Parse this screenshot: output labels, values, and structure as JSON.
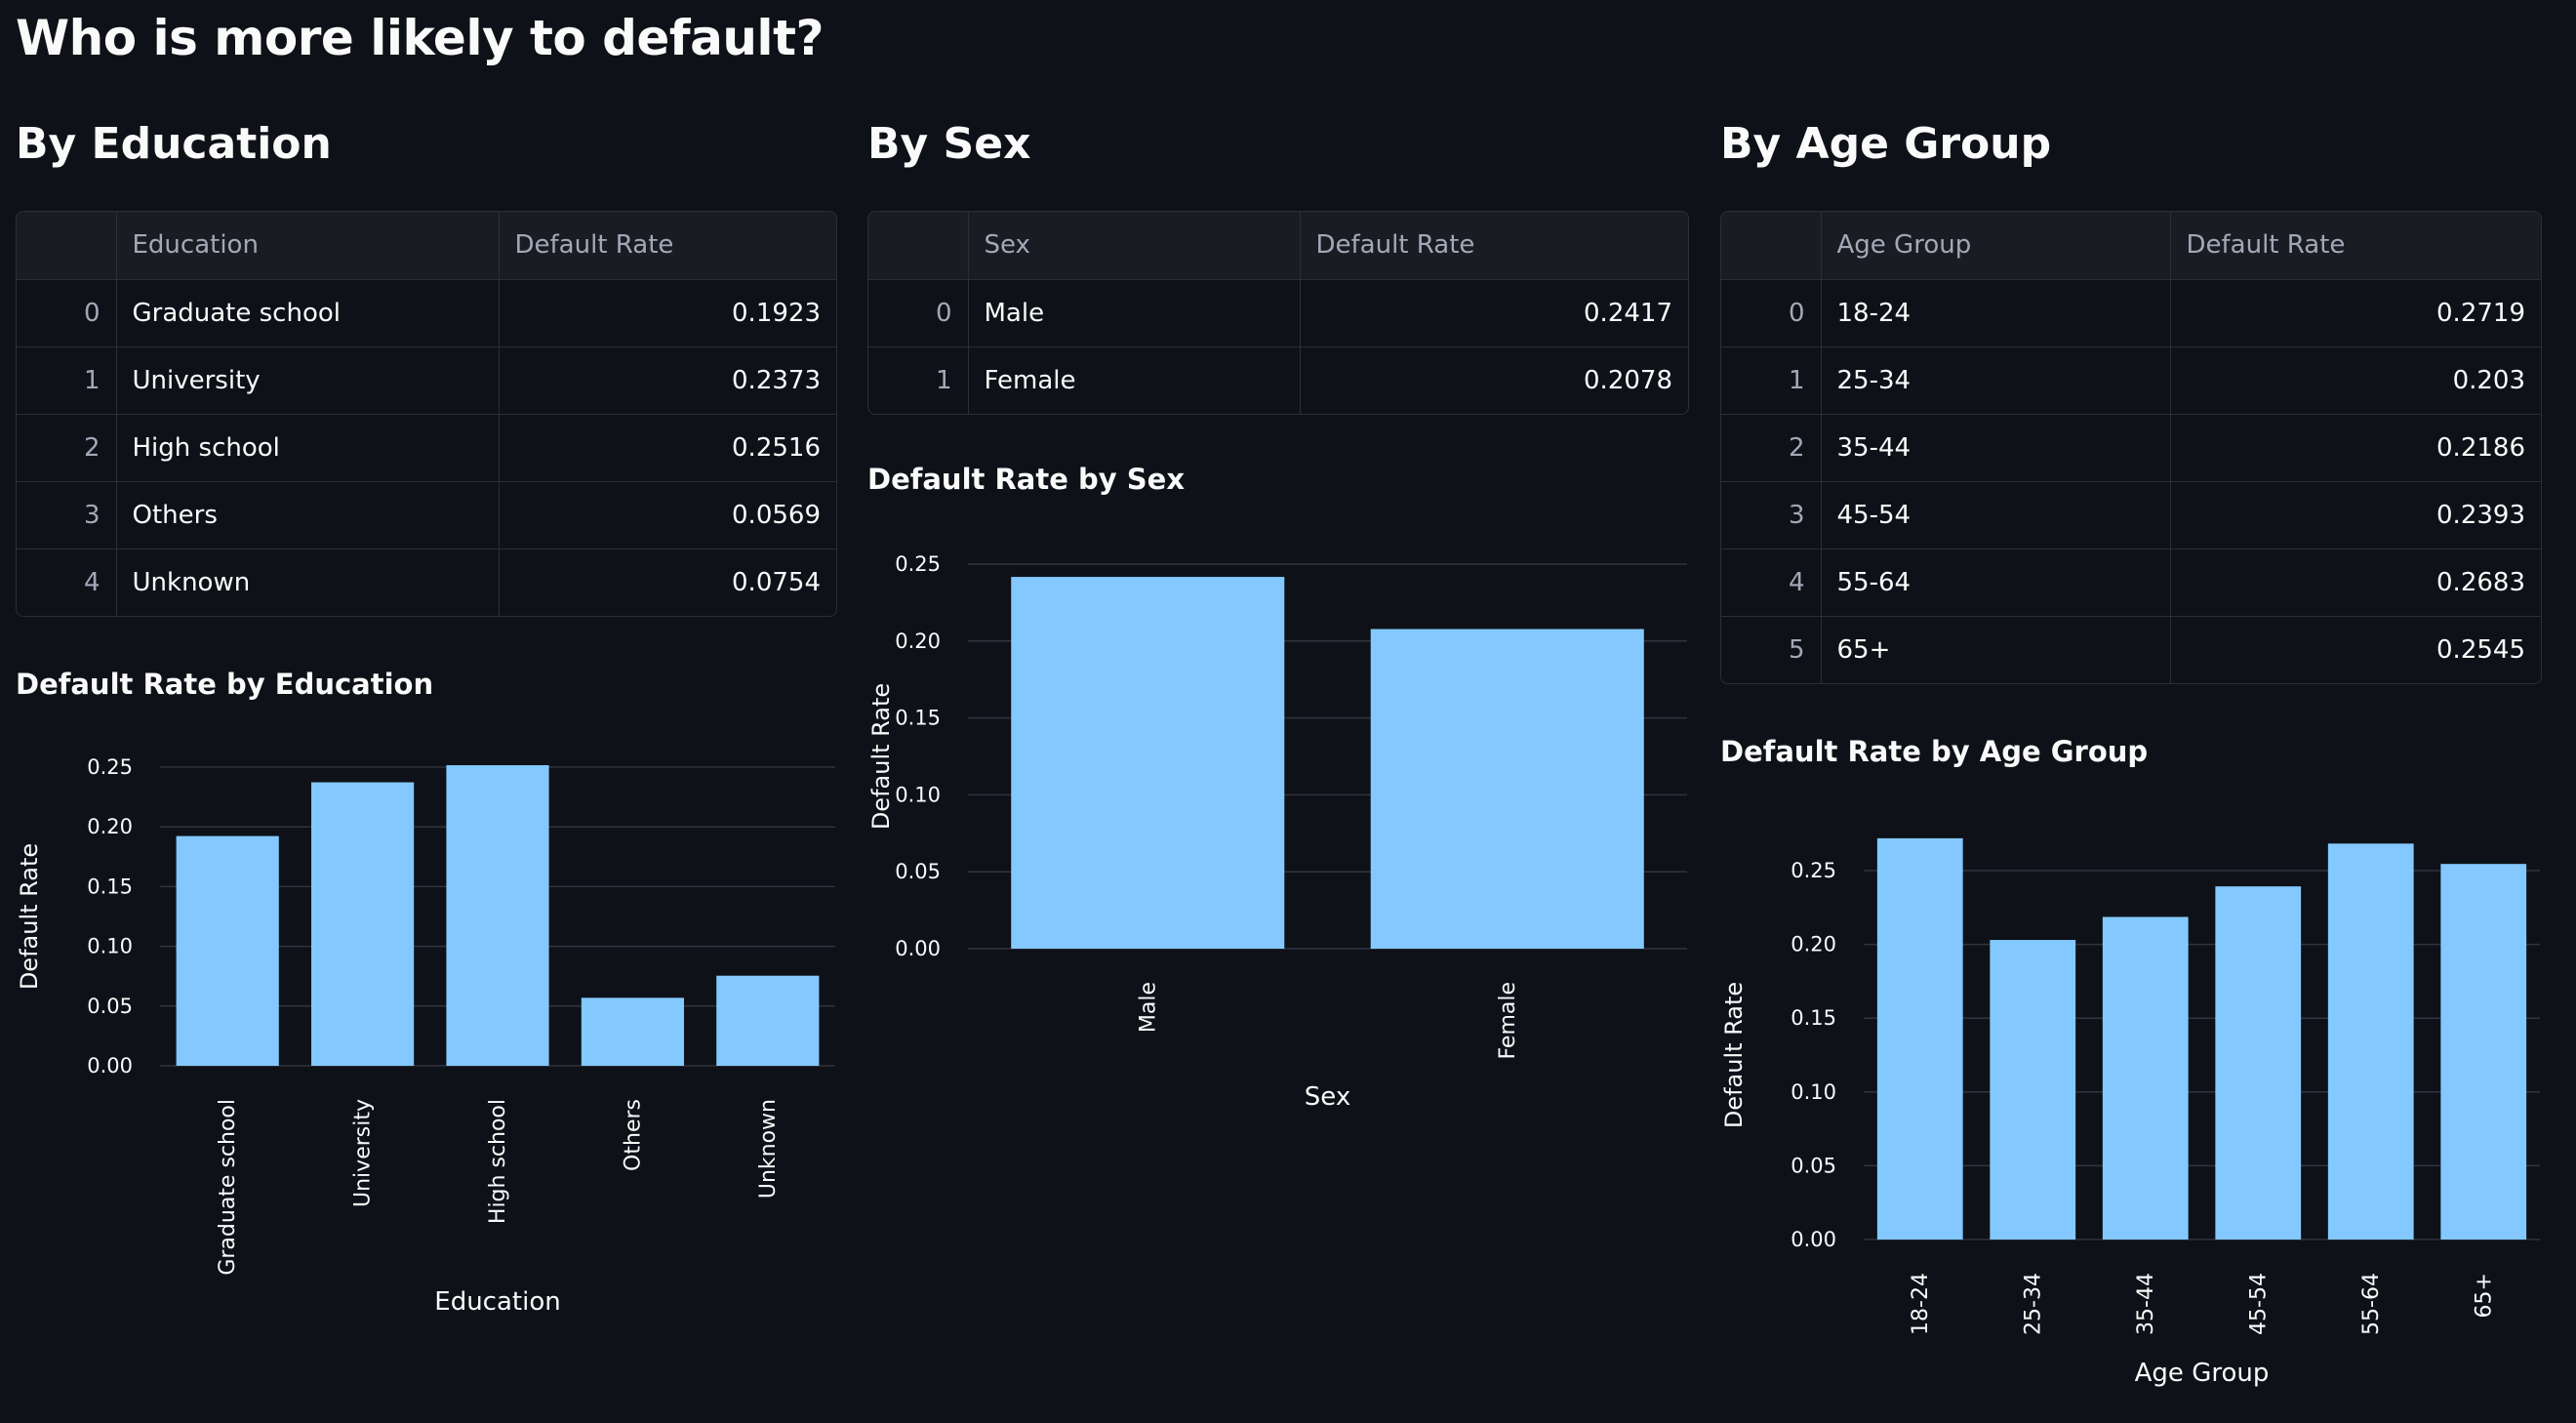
{
  "page": {
    "title": "Who is more likely to default?"
  },
  "sections": [
    {
      "heading": "By Education",
      "table": {
        "columns": [
          "",
          "Education",
          "Default Rate"
        ],
        "rows": [
          {
            "index": "0",
            "label": "Graduate school",
            "value": "0.1923"
          },
          {
            "index": "1",
            "label": "University",
            "value": "0.2373"
          },
          {
            "index": "2",
            "label": "High school",
            "value": "0.2516"
          },
          {
            "index": "3",
            "label": "Others",
            "value": "0.0569"
          },
          {
            "index": "4",
            "label": "Unknown",
            "value": "0.0754"
          }
        ]
      },
      "chart_title": "Default Rate by Education"
    },
    {
      "heading": "By Sex",
      "table": {
        "columns": [
          "",
          "Sex",
          "Default Rate"
        ],
        "rows": [
          {
            "index": "0",
            "label": "Male",
            "value": "0.2417"
          },
          {
            "index": "1",
            "label": "Female",
            "value": "0.2078"
          }
        ]
      },
      "chart_title": "Default Rate by Sex"
    },
    {
      "heading": "By Age Group",
      "table": {
        "columns": [
          "",
          "Age Group",
          "Default Rate"
        ],
        "rows": [
          {
            "index": "0",
            "label": "18-24",
            "value": "0.2719"
          },
          {
            "index": "1",
            "label": "25-34",
            "value": "0.203"
          },
          {
            "index": "2",
            "label": "35-44",
            "value": "0.2186"
          },
          {
            "index": "3",
            "label": "45-54",
            "value": "0.2393"
          },
          {
            "index": "4",
            "label": "55-64",
            "value": "0.2683"
          },
          {
            "index": "5",
            "label": "65+",
            "value": "0.2545"
          }
        ]
      },
      "chart_title": "Default Rate by Age Group"
    }
  ],
  "chart_data": [
    {
      "type": "bar",
      "title": "Default Rate by Education",
      "categories": [
        "Graduate school",
        "University",
        "High school",
        "Others",
        "Unknown"
      ],
      "values": [
        0.1923,
        0.2373,
        0.2516,
        0.0569,
        0.0754
      ],
      "xlabel": "Education",
      "ylabel": "Default Rate",
      "ylim": [
        0,
        0.25
      ],
      "yticks": [
        "0.00",
        "0.05",
        "0.10",
        "0.15",
        "0.20",
        "0.25"
      ],
      "grid": true,
      "bar_color": "#83c9ff"
    },
    {
      "type": "bar",
      "title": "Default Rate by Sex",
      "categories": [
        "Male",
        "Female"
      ],
      "values": [
        0.2417,
        0.2078
      ],
      "xlabel": "Sex",
      "ylabel": "Default Rate",
      "ylim": [
        0,
        0.25
      ],
      "yticks": [
        "0.00",
        "0.05",
        "0.10",
        "0.15",
        "0.20",
        "0.25"
      ],
      "grid": true,
      "bar_color": "#83c9ff"
    },
    {
      "type": "bar",
      "title": "Default Rate by Age Group",
      "categories": [
        "18-24",
        "25-34",
        "35-44",
        "45-54",
        "55-64",
        "65+"
      ],
      "values": [
        0.2719,
        0.203,
        0.2186,
        0.2393,
        0.2683,
        0.2545
      ],
      "xlabel": "Age Group",
      "ylabel": "Default Rate",
      "ylim": [
        0,
        0.25
      ],
      "yticks": [
        "0.00",
        "0.05",
        "0.10",
        "0.15",
        "0.20",
        "0.25"
      ],
      "grid": true,
      "bar_color": "#83c9ff"
    }
  ]
}
